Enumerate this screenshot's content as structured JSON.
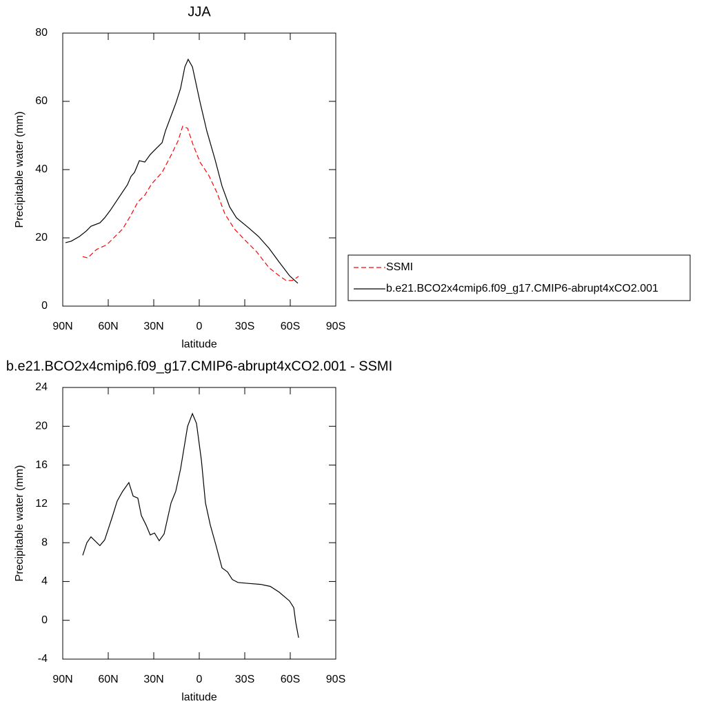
{
  "chart_data": [
    {
      "type": "line",
      "title": "JJA",
      "xlabel": "latitude",
      "ylabel": "Precipitable water (mm)",
      "xlim": [
        90,
        -90
      ],
      "xticks": [
        {
          "value": 90,
          "label": "90N"
        },
        {
          "value": 60,
          "label": "60N"
        },
        {
          "value": 30,
          "label": "30N"
        },
        0,
        {
          "value": -30,
          "label": "30S"
        },
        {
          "value": -60,
          "label": "60S"
        },
        {
          "value": -90,
          "label": "90S"
        }
      ],
      "ylim": [
        0,
        80
      ],
      "yticks": [
        0,
        20,
        40,
        60,
        80
      ],
      "legend": "right",
      "series": [
        {
          "name": "SSMI",
          "color": "#ff0000",
          "linestyle": "dashed",
          "x": [
            76.8,
            73.6,
            67.7,
            60.9,
            56.4,
            50.5,
            45,
            40.5,
            35.9,
            31.4,
            24.5,
            18.6,
            14.1,
            10.9,
            7.7,
            4.1,
            -0.5,
            -6.4,
            -11.8,
            -16.8,
            -23.2,
            -30,
            -37.7,
            -45.9,
            -52.7,
            -57.3,
            -61.4,
            -65.5
          ],
          "values": [
            14.5,
            14.1,
            16.6,
            18.0,
            20.0,
            22.6,
            26.7,
            30.5,
            32.5,
            35.8,
            39.2,
            44.2,
            48.3,
            52.7,
            52.1,
            47.3,
            42.2,
            38.2,
            33.1,
            27.1,
            22.6,
            19.4,
            16.0,
            11.3,
            8.9,
            7.5,
            7.5,
            8.7
          ]
        },
        {
          "name": "b.e21.BCO2x4cmip6.f09_g17.CMIP6-abrupt4xCO2.001",
          "color": "#000000",
          "linestyle": "solid",
          "x": [
            88.2,
            84.5,
            79,
            74.5,
            71.4,
            65.5,
            62.3,
            58.6,
            54.1,
            47.3,
            45,
            42.7,
            39.5,
            35.9,
            32.3,
            28.6,
            24.5,
            22.3,
            15.5,
            12.3,
            9.5,
            7.3,
            4.5,
            -0.5,
            -5,
            -10.5,
            -15,
            -20,
            -24.5,
            -32.3,
            -39.1,
            -45.9,
            -52.7,
            -59.5,
            -65
          ],
          "values": [
            18.6,
            19.0,
            20.4,
            22.0,
            23.4,
            24.4,
            25.9,
            28.1,
            31.1,
            35.6,
            38.0,
            39.2,
            42.6,
            42.2,
            44.4,
            46.1,
            47.9,
            51.3,
            59.4,
            63.8,
            70.1,
            72.3,
            70.1,
            59.8,
            51.3,
            42.8,
            35.2,
            29.1,
            25.9,
            23.0,
            20.4,
            17.0,
            12.9,
            8.9,
            6.7
          ]
        }
      ]
    },
    {
      "type": "line",
      "title": "b.e21.BCO2x4cmip6.f09_g17.CMIP6-abrupt4xCO2.001 - SSMI",
      "xlabel": "latitude",
      "ylabel": "Precipitable water (mm)",
      "xlim": [
        90,
        -90
      ],
      "xticks": [
        {
          "value": 90,
          "label": "90N"
        },
        {
          "value": 60,
          "label": "60N"
        },
        {
          "value": 30,
          "label": "30N"
        },
        0,
        {
          "value": -30,
          "label": "30S"
        },
        {
          "value": -60,
          "label": "60S"
        },
        {
          "value": -90,
          "label": "90S"
        }
      ],
      "ylim": [
        -4,
        24
      ],
      "yticks": [
        -4,
        0,
        4,
        8,
        12,
        16,
        20,
        24
      ],
      "color": "#000000",
      "x": [
        76.8,
        74.1,
        71.4,
        65.5,
        62.3,
        57.7,
        54.1,
        50.5,
        46.4,
        43.6,
        40.5,
        38.2,
        35,
        32.3,
        29.5,
        26.4,
        23.2,
        18.6,
        15.5,
        12.3,
        7.7,
        4.5,
        1.8,
        -1.4,
        -4.1,
        -7.3,
        -10.9,
        -15,
        -18.6,
        -21.8,
        -25.5,
        -32.3,
        -40.5,
        -46.8,
        -52.7,
        -59.5,
        -62.3,
        -63.6,
        -65.5
      ],
      "values": [
        6.7,
        8.0,
        8.6,
        7.7,
        8.3,
        10.5,
        12.3,
        13.3,
        14.2,
        12.8,
        12.6,
        10.8,
        9.8,
        8.8,
        9.0,
        8.2,
        8.9,
        12.1,
        13.3,
        15.6,
        20.0,
        21.3,
        20.3,
        16.5,
        12.1,
        9.8,
        7.8,
        5.4,
        5.0,
        4.2,
        3.9,
        3.8,
        3.7,
        3.5,
        2.9,
        2.0,
        1.3,
        -0.2,
        -1.8
      ]
    }
  ]
}
